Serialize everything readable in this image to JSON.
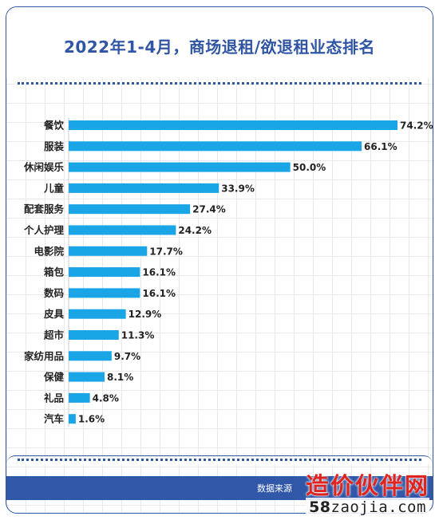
{
  "chart_data": {
    "type": "bar",
    "orientation": "horizontal",
    "title": "2022年1-4月，商场退租/欲退租业态排名",
    "categories": [
      "餐饮",
      "服装",
      "休闲娱乐",
      "儿童",
      "配套服务",
      "个人护理",
      "电影院",
      "箱包",
      "数码",
      "皮具",
      "超市",
      "家纺用品",
      "保健",
      "礼品",
      "汽车"
    ],
    "values": [
      74.2,
      66.1,
      50.0,
      33.9,
      27.4,
      24.2,
      17.7,
      16.1,
      16.1,
      12.9,
      11.3,
      9.7,
      8.1,
      4.8,
      1.6
    ],
    "value_labels": [
      "74.2%",
      "66.1%",
      "50.0%",
      "33.9%",
      "27.4%",
      "24.2%",
      "17.7%",
      "16.1%",
      "16.1%",
      "12.9%",
      "11.3%",
      "9.7%",
      "8.1%",
      "4.8%",
      "1.6%"
    ],
    "bar_color": "#1aa5e6",
    "xlim": [
      0,
      74.2
    ],
    "grid": true
  },
  "footer": {
    "source_text": "数据来源"
  },
  "watermark": {
    "line1": "造价伙伴网",
    "line2_number": "58",
    "line2_text": "zaojia.com"
  }
}
